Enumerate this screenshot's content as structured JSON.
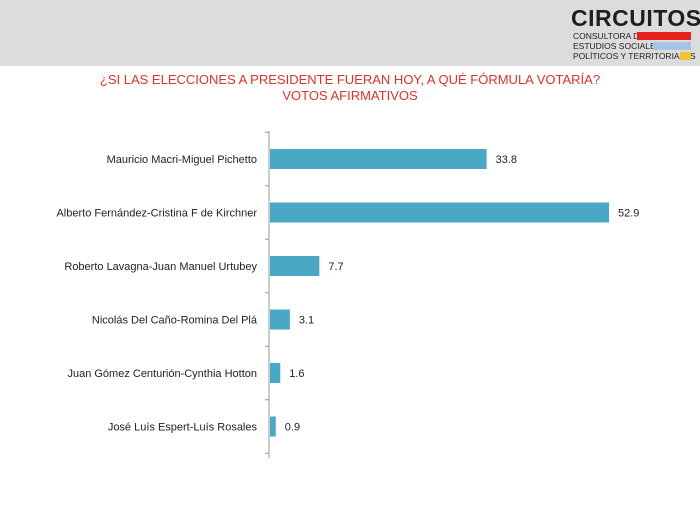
{
  "logo": {
    "name": "CIRCUITOS",
    "line1": "CONSULTORA DE",
    "line2": "ESTUDIOS SOCIALES,",
    "line3": "POLÍTICOS Y TERRITORIALES",
    "colors": {
      "red": "#e8231f",
      "blue": "#a6c4e8",
      "yellow": "#f4c430"
    }
  },
  "title": {
    "line1": "¿SI LAS ELECCIONES A PRESIDENTE FUERAN HOY, A QUÉ FÓRMULA VOTARÍA?",
    "line2": "VOTOS AFIRMATIVOS"
  },
  "chart_data": {
    "type": "bar",
    "orientation": "horizontal",
    "categories": [
      "Mauricio Macri-Miguel Pichetto",
      "Alberto Fernández-Cristina F de Kirchner",
      "Roberto Lavagna-Juan Manuel Urtubey",
      "Nicolás Del Caño-Romina Del Plá",
      "Juan Gómez Centurión-Cynthia Hotton",
      "José Luís Espert-Luís Rosales"
    ],
    "values": [
      33.8,
      52.9,
      7.7,
      3.1,
      1.6,
      0.9
    ],
    "value_labels": [
      "33.8",
      "52.9",
      "7.7",
      "3.1",
      "1.6",
      "0.9"
    ],
    "xlim": [
      0,
      52.9
    ],
    "grid": false,
    "bar_color": "#4aa8c4",
    "axis_color": "#999999"
  }
}
